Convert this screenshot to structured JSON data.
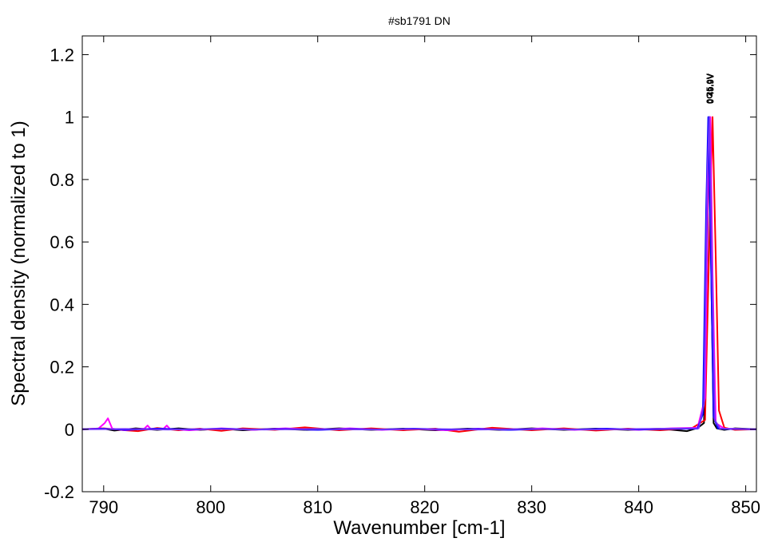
{
  "chart_data": {
    "type": "line",
    "title": "#sb1791 DN",
    "xlabel": "Wavenumber [cm-1]",
    "ylabel": "Spectral density (normalized to 1)",
    "xlim": [
      788,
      851
    ],
    "ylim": [
      -0.2,
      1.26
    ],
    "xticks": [
      790,
      800,
      810,
      820,
      830,
      840,
      850
    ],
    "yticks": [
      -0.2,
      0,
      0.2,
      0.4,
      0.6,
      0.8,
      1,
      1.2
    ],
    "ytick_labels": [
      "-0.2",
      "0",
      "0.2",
      "0.4",
      "0.6",
      "0.8",
      "1",
      "1.2"
    ],
    "grid": false,
    "peak_labels": [
      {
        "text": "0C",
        "x": 846.6
      },
      {
        "text": "0 25.0V",
        "x": 846.6
      },
      {
        "text": "0 49.9V",
        "x": 846.7
      }
    ],
    "series": [
      {
        "color": "#000000",
        "x": [
          788,
          790,
          791,
          793,
          795,
          797,
          799,
          801,
          803,
          806,
          809,
          812,
          815,
          818,
          821,
          824,
          827,
          830,
          833,
          836,
          839,
          842,
          844.5,
          845.5,
          846.1,
          846.4,
          846.6,
          846.8,
          847.0,
          847.3,
          848,
          849,
          851
        ],
        "y": [
          0,
          0.002,
          -0.004,
          0.003,
          -0.002,
          0.003,
          -0.002,
          0.002,
          -0.003,
          0.002,
          -0.002,
          0.003,
          -0.002,
          0.002,
          -0.003,
          0.002,
          -0.002,
          0.003,
          -0.002,
          0.002,
          -0.002,
          0.002,
          -0.006,
          0.004,
          0.02,
          0.55,
          1.0,
          0.45,
          0.02,
          0.003,
          -0.002,
          0.003,
          0
        ]
      },
      {
        "color": "#ff0000",
        "x": [
          788,
          790,
          792,
          793.2,
          795,
          797,
          799,
          801,
          803,
          806,
          808.8,
          812,
          815,
          818,
          821,
          823.2,
          826.3,
          830,
          833,
          836,
          839,
          842,
          845,
          846.2,
          846.6,
          846.9,
          847.2,
          847.5,
          848,
          849,
          851
        ],
        "y": [
          0,
          0.003,
          -0.003,
          -0.006,
          0.004,
          -0.003,
          0.002,
          -0.005,
          0.003,
          -0.002,
          0.006,
          -0.003,
          0.003,
          -0.003,
          0.002,
          -0.008,
          0.005,
          -0.003,
          0.003,
          -0.004,
          0.002,
          -0.003,
          0.004,
          0.03,
          0.6,
          1.0,
          0.55,
          0.06,
          0.005,
          -0.002,
          0
        ]
      },
      {
        "color": "#ff00ff",
        "x": [
          788,
          789.5,
          790.1,
          790.4,
          790.8,
          792,
          793.8,
          794.1,
          794.4,
          795.6,
          795.9,
          796.2,
          798,
          801,
          804,
          807,
          810,
          813,
          816,
          819,
          822,
          825,
          828,
          831,
          834,
          837,
          840,
          843,
          845.5,
          846.2,
          846.5,
          846.7,
          846.9,
          847.2,
          848,
          851
        ],
        "y": [
          0,
          0.002,
          0.02,
          0.035,
          0.002,
          -0.003,
          0.002,
          0.012,
          0.001,
          0.002,
          0.012,
          0.001,
          -0.003,
          0.003,
          -0.002,
          0.003,
          -0.002,
          0.003,
          -0.002,
          0.002,
          -0.003,
          0.002,
          -0.002,
          0.003,
          -0.002,
          0.002,
          -0.002,
          0.003,
          0.005,
          0.1,
          0.85,
          1.0,
          0.5,
          0.02,
          0.002,
          0
        ]
      },
      {
        "color": "#0000ff",
        "x": [
          788,
          790,
          792,
          795,
          798,
          801,
          804,
          807,
          810,
          813,
          816,
          819,
          822,
          825,
          828,
          831,
          834,
          837,
          840,
          843,
          845.5,
          846.0,
          846.3,
          846.5,
          846.7,
          847.0,
          847.4,
          848,
          851
        ],
        "y": [
          0,
          0.002,
          -0.002,
          0.002,
          -0.001,
          0.002,
          -0.001,
          0.001,
          -0.002,
          0.001,
          -0.001,
          0.002,
          -0.001,
          0.001,
          -0.002,
          0.001,
          -0.001,
          0.002,
          -0.001,
          0.001,
          0.002,
          0.05,
          0.7,
          1.0,
          0.65,
          0.04,
          0.003,
          0.001,
          0
        ]
      },
      {
        "color": "#7030ff",
        "x": [
          788,
          792,
          796,
          800,
          805,
          810,
          815,
          820,
          825,
          830,
          835,
          840,
          845.6,
          846.1,
          846.4,
          846.6,
          846.8,
          847.1,
          847.6,
          851
        ],
        "y": [
          0,
          0.001,
          -0.001,
          0.001,
          -0.001,
          0.001,
          -0.001,
          0.001,
          -0.001,
          0.001,
          -0.001,
          0.001,
          0.003,
          0.08,
          0.8,
          1.0,
          0.6,
          0.03,
          0.002,
          0
        ]
      }
    ]
  }
}
